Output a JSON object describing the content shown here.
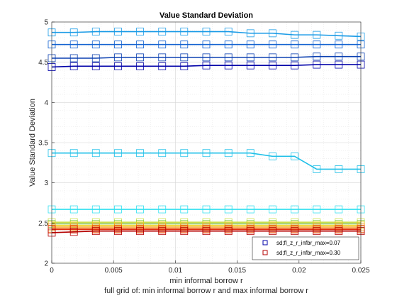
{
  "chart_data": {
    "type": "line",
    "title": "Value Standard Deviation",
    "xlabel": "min informal borrow r",
    "ylabel": "Value Standard Deviation",
    "subtitle": "full grid of: min informal borrow r and max informal borrow r",
    "xlim": [
      0,
      0.025
    ],
    "ylim": [
      2,
      5
    ],
    "xticks": [
      "0",
      "0.005",
      "0.01",
      "0.015",
      "0.02",
      "0.025"
    ],
    "yticks": [
      "2",
      "2.5",
      "3",
      "3.5",
      "4",
      "4.5",
      "5"
    ],
    "grid": true,
    "minor_grid": true,
    "legend_position": "bottom-right",
    "legend": [
      {
        "label": "sd;fl_z_r_infbr_max=0.07",
        "color": "#0000a8"
      },
      {
        "label": "sd;fl_z_r_infbr_max=0.30",
        "color": "#b40000"
      }
    ],
    "x": [
      0,
      0.00179,
      0.00357,
      0.00536,
      0.00714,
      0.00893,
      0.01071,
      0.0125,
      0.01429,
      0.01607,
      0.01786,
      0.01964,
      0.02143,
      0.02321,
      0.025
    ],
    "series": [
      {
        "color": "#1a9be6",
        "values": [
          4.87,
          4.87,
          4.88,
          4.88,
          4.88,
          4.88,
          4.88,
          4.88,
          4.88,
          4.86,
          4.86,
          4.84,
          4.84,
          4.83,
          4.82
        ]
      },
      {
        "color": "#1060d0",
        "values": [
          4.72,
          4.72,
          4.72,
          4.72,
          4.72,
          4.72,
          4.72,
          4.72,
          4.72,
          4.72,
          4.72,
          4.72,
          4.72,
          4.72,
          4.72
        ]
      },
      {
        "color": "#0a3fb0",
        "values": [
          4.55,
          4.55,
          4.55,
          4.56,
          4.56,
          4.56,
          4.56,
          4.56,
          4.56,
          4.56,
          4.56,
          4.56,
          4.57,
          4.57,
          4.57
        ]
      },
      {
        "color": "#0000a8",
        "values": [
          4.44,
          4.45,
          4.45,
          4.45,
          4.45,
          4.45,
          4.45,
          4.46,
          4.46,
          4.46,
          4.46,
          4.46,
          4.47,
          4.47,
          4.47
        ]
      },
      {
        "color": "#20c0e8",
        "values": [
          3.37,
          3.37,
          3.37,
          3.37,
          3.37,
          3.37,
          3.37,
          3.37,
          3.37,
          3.37,
          3.33,
          3.33,
          3.17,
          3.17,
          3.17
        ]
      },
      {
        "color": "#30e0f0",
        "values": [
          2.67,
          2.67,
          2.67,
          2.67,
          2.67,
          2.67,
          2.67,
          2.67,
          2.67,
          2.67,
          2.67,
          2.67,
          2.67,
          2.67,
          2.67
        ]
      },
      {
        "color": "#c8e04a",
        "values": [
          2.51,
          2.51,
          2.51,
          2.51,
          2.51,
          2.51,
          2.51,
          2.51,
          2.51,
          2.51,
          2.51,
          2.51,
          2.51,
          2.51,
          2.51
        ]
      },
      {
        "color": "#90d050",
        "values": [
          2.49,
          2.49,
          2.49,
          2.49,
          2.49,
          2.49,
          2.49,
          2.49,
          2.49,
          2.49,
          2.49,
          2.49,
          2.49,
          2.49,
          2.49
        ]
      },
      {
        "color": "#f0d020",
        "values": [
          2.47,
          2.47,
          2.47,
          2.47,
          2.47,
          2.47,
          2.47,
          2.47,
          2.47,
          2.47,
          2.47,
          2.47,
          2.47,
          2.47,
          2.47
        ]
      },
      {
        "color": "#f5a020",
        "values": [
          2.45,
          2.45,
          2.45,
          2.45,
          2.45,
          2.45,
          2.45,
          2.45,
          2.45,
          2.45,
          2.45,
          2.45,
          2.45,
          2.45,
          2.45
        ]
      },
      {
        "color": "#f06818",
        "values": [
          2.43,
          2.43,
          2.43,
          2.43,
          2.43,
          2.43,
          2.43,
          2.43,
          2.43,
          2.43,
          2.43,
          2.43,
          2.43,
          2.43,
          2.43
        ]
      },
      {
        "color": "#e03010",
        "values": [
          2.42,
          2.42,
          2.42,
          2.42,
          2.42,
          2.42,
          2.42,
          2.42,
          2.42,
          2.42,
          2.42,
          2.42,
          2.42,
          2.42,
          2.42
        ]
      },
      {
        "color": "#b40000",
        "values": [
          2.38,
          2.39,
          2.4,
          2.4,
          2.4,
          2.4,
          2.4,
          2.4,
          2.4,
          2.4,
          2.4,
          2.4,
          2.4,
          2.4,
          2.4
        ]
      }
    ]
  }
}
